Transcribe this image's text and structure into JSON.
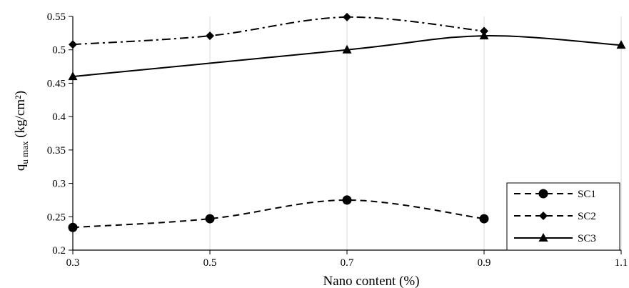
{
  "chart_data": {
    "type": "line",
    "xlabel": "Nano content (%)",
    "ylabel_main": "q",
    "ylabel_sub": "u max",
    "ylabel_unit": " (kg/cm²)",
    "xlim": [
      0.3,
      1.1
    ],
    "ylim": [
      0.2,
      0.55
    ],
    "x_ticks": [
      "0.3",
      "0.5",
      "0.7",
      "0.9",
      "1.1"
    ],
    "y_ticks": [
      "0.2",
      "0.25",
      "0.3",
      "0.35",
      "0.4",
      "0.45",
      "0.5",
      "0.55"
    ],
    "grid": "vertical",
    "legend_position": "bottom-right",
    "series": [
      {
        "name": "SC1",
        "marker": "circle",
        "line_style": "dashed",
        "x": [
          0.3,
          0.5,
          0.7,
          0.9
        ],
        "y": [
          0.234,
          0.247,
          0.275,
          0.247
        ]
      },
      {
        "name": "SC2",
        "marker": "diamond",
        "line_style": "dash-dot",
        "x": [
          0.3,
          0.5,
          0.7,
          0.9
        ],
        "y": [
          0.508,
          0.521,
          0.549,
          0.528
        ]
      },
      {
        "name": "SC3",
        "marker": "triangle",
        "line_style": "solid",
        "x": [
          0.3,
          0.7,
          0.9,
          1.1
        ],
        "y": [
          0.46,
          0.5,
          0.521,
          0.507
        ]
      }
    ]
  }
}
